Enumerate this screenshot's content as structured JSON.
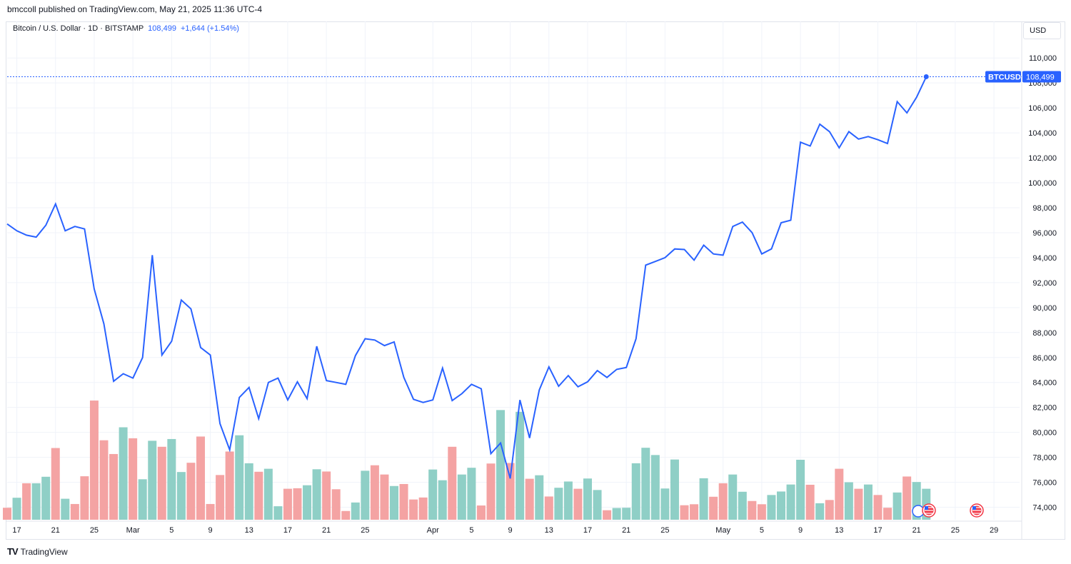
{
  "header": {
    "published": "bmccoll published on TradingView.com, May 21, 2025 11:36 UTC-4"
  },
  "legend": {
    "symbol": "Bitcoin / U.S. Dollar · 1D · BITSTAMP",
    "price": "108,499",
    "change": "+1,644 (+1.54%)"
  },
  "scale": {
    "currency": "USD"
  },
  "price_tag": {
    "symbol": "BTCUSD",
    "value": "108,499"
  },
  "footer": {
    "brand": "TradingView",
    "logo": "TV"
  },
  "icons": {
    "earnings": "ⓒ",
    "flag": "US"
  },
  "colors": {
    "line": "#2962ff",
    "volume_up": "#8fcfc6",
    "volume_down": "#f4a3a3",
    "grid": "#f0f3fa",
    "text": "#131722"
  },
  "chart_data": {
    "type": "line",
    "title": "Bitcoin / U.S. Dollar · 1D · BITSTAMP",
    "ylim": [
      73000,
      111500
    ],
    "y_ticks": [
      74000,
      76000,
      78000,
      80000,
      82000,
      84000,
      86000,
      88000,
      90000,
      92000,
      94000,
      96000,
      98000,
      100000,
      102000,
      104000,
      106000,
      108000,
      110000
    ],
    "y_tick_labels": [
      "74,000",
      "76,000",
      "78,000",
      "80,000",
      "82,000",
      "84,000",
      "86,000",
      "88,000",
      "90,000",
      "92,000",
      "94,000",
      "96,000",
      "98,000",
      "100,000",
      "102,000",
      "104,000",
      "106,000",
      "108,000",
      "110,000"
    ],
    "x_tick_labels": [
      {
        "label": "17",
        "date": "2025-02-17"
      },
      {
        "label": "21",
        "date": "2025-02-21"
      },
      {
        "label": "25",
        "date": "2025-02-25"
      },
      {
        "label": "Mar",
        "date": "2025-03-01"
      },
      {
        "label": "5",
        "date": "2025-03-05"
      },
      {
        "label": "9",
        "date": "2025-03-09"
      },
      {
        "label": "13",
        "date": "2025-03-13"
      },
      {
        "label": "17",
        "date": "2025-03-17"
      },
      {
        "label": "21",
        "date": "2025-03-21"
      },
      {
        "label": "25",
        "date": "2025-03-25"
      },
      {
        "label": "Apr",
        "date": "2025-04-01"
      },
      {
        "label": "5",
        "date": "2025-04-05"
      },
      {
        "label": "9",
        "date": "2025-04-09"
      },
      {
        "label": "13",
        "date": "2025-04-13"
      },
      {
        "label": "17",
        "date": "2025-04-17"
      },
      {
        "label": "21",
        "date": "2025-04-21"
      },
      {
        "label": "25",
        "date": "2025-04-25"
      },
      {
        "label": "May",
        "date": "2025-05-01"
      },
      {
        "label": "5",
        "date": "2025-05-05"
      },
      {
        "label": "9",
        "date": "2025-05-09"
      },
      {
        "label": "13",
        "date": "2025-05-13"
      },
      {
        "label": "17",
        "date": "2025-05-17"
      },
      {
        "label": "21",
        "date": "2025-05-21"
      },
      {
        "label": "25",
        "date": "2025-05-25"
      },
      {
        "label": "29",
        "date": "2025-05-29"
      }
    ],
    "x_start": "2025-02-16",
    "last_price": 108499,
    "price": [
      96700,
      96150,
      95800,
      95650,
      96600,
      98300,
      96150,
      96500,
      96300,
      91500,
      88700,
      84100,
      84700,
      84350,
      86000,
      94200,
      86200,
      87300,
      90600,
      89900,
      86800,
      86200,
      80700,
      78600,
      82800,
      83600,
      81100,
      84000,
      84350,
      82600,
      84050,
      82700,
      86900,
      84150,
      84000,
      83850,
      86150,
      87500,
      87400,
      86950,
      87250,
      84400,
      82650,
      82400,
      82600,
      85150,
      82550,
      83100,
      83850,
      83500,
      78300,
      79150,
      76300,
      82600,
      79550,
      83400,
      85250,
      83700,
      84550,
      83650,
      84050,
      84950,
      84400,
      85050,
      85200,
      87500,
      93400,
      93700,
      94000,
      94700,
      94650,
      93800,
      95000,
      94300,
      94200,
      96500,
      96850,
      96000,
      94300,
      94700,
      96800,
      97000,
      103250,
      102950,
      104700,
      104100,
      102800,
      104100,
      103500,
      103700,
      103450,
      103150,
      106500,
      105600,
      106850,
      108499
    ],
    "volume": [
      0.48,
      0.88,
      1.46,
      1.46,
      1.72,
      2.87,
      0.84,
      0.63,
      1.74,
      4.77,
      3.18,
      2.63,
      3.7,
      3.26,
      1.62,
      3.16,
      2.92,
      3.23,
      1.91,
      2.28,
      3.33,
      0.63,
      1.79,
      2.73,
      3.38,
      2.26,
      1.92,
      2.04,
      0.54,
      1.24,
      1.26,
      1.38,
      2.02,
      1.93,
      1.22,
      0.35,
      0.69,
      1.96,
      2.18,
      1.81,
      1.35,
      1.43,
      0.81,
      0.89,
      2.01,
      1.58,
      2.92,
      1.81,
      2.08,
      0.57,
      2.25,
      4.39,
      2.27,
      4.32,
      1.64,
      1.78,
      0.93,
      1.28,
      1.53,
      1.24,
      1.65,
      1.19,
      0.38,
      0.47,
      0.48,
      2.26,
      2.88,
      2.59,
      1.25,
      2.41,
      0.58,
      0.62,
      1.66,
      0.92,
      1.46,
      1.81,
      1.12,
      0.75,
      0.62,
      0.99,
      1.13,
      1.41,
      2.4,
      1.4,
      0.66,
      0.79,
      2.04,
      1.5,
      1.24,
      1.41,
      0.99,
      0.48,
      1.09,
      1.73,
      1.51,
      1.24
    ],
    "volume_up": [
      0,
      1,
      0,
      1,
      1,
      0,
      1,
      0,
      0,
      0,
      0,
      0,
      1,
      0,
      1,
      1,
      0,
      1,
      1,
      0,
      0,
      0,
      0,
      0,
      1,
      1,
      0,
      1,
      1,
      0,
      0,
      1,
      1,
      0,
      0,
      0,
      1,
      1,
      0,
      0,
      1,
      0,
      0,
      0,
      1,
      1,
      0,
      1,
      1,
      0,
      0,
      1,
      0,
      1,
      0,
      1,
      0,
      1,
      1,
      0,
      1,
      1,
      0,
      1,
      1,
      1,
      1,
      1,
      1,
      1,
      0,
      0,
      1,
      0,
      0,
      1,
      1,
      0,
      0,
      1,
      1,
      1,
      1,
      0,
      1,
      0,
      0,
      1,
      0,
      1,
      0,
      0,
      1,
      0,
      1,
      1
    ]
  }
}
